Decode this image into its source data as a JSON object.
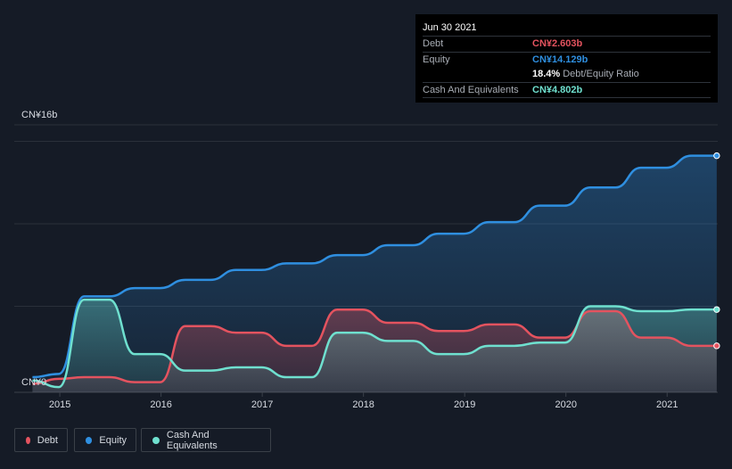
{
  "tooltip": {
    "date": "Jun 30 2021",
    "debt_label": "Debt",
    "debt_value": "CN¥2.603b",
    "equity_label": "Equity",
    "equity_value": "CN¥14.129b",
    "ratio_value": "18.4%",
    "ratio_label": "Debt/Equity Ratio",
    "cash_label": "Cash And Equivalents",
    "cash_value": "CN¥4.802b"
  },
  "colors": {
    "debt": "#e4535f",
    "equity": "#2f8fe0",
    "cash": "#6fe0cf",
    "background": "#151b26"
  },
  "legend": {
    "debt": "Debt",
    "equity": "Equity",
    "cash": "Cash And Equivalents"
  },
  "chart_data": {
    "type": "area",
    "title": "",
    "xlabel": "",
    "ylabel": "",
    "y_top_label": "CN¥16b",
    "y_bottom_label": "CN¥0",
    "ylim": [
      0,
      16
    ],
    "x_tick_labels": [
      "2015",
      "2016",
      "2017",
      "2018",
      "2019",
      "2020",
      "2021"
    ],
    "x_tick_values": [
      2015,
      2016,
      2017,
      2018,
      2019,
      2020,
      2021
    ],
    "xlim": [
      2014.55,
      2021.5
    ],
    "grid": true,
    "legend_position": "bottom-left",
    "series": [
      {
        "name": "Equity",
        "x": [
          2014.73,
          2014.99,
          2015.24,
          2015.49,
          2015.74,
          2015.99,
          2016.24,
          2016.49,
          2016.74,
          2016.99,
          2017.24,
          2017.49,
          2017.74,
          2017.99,
          2018.24,
          2018.49,
          2018.74,
          2018.99,
          2019.24,
          2019.49,
          2019.74,
          2019.99,
          2020.24,
          2020.49,
          2020.74,
          2020.99,
          2021.24,
          2021.49
        ],
        "values": [
          0.7,
          0.9,
          5.6,
          5.6,
          6.1,
          6.1,
          6.6,
          6.6,
          7.2,
          7.2,
          7.6,
          7.6,
          8.1,
          8.1,
          8.7,
          8.7,
          9.4,
          9.4,
          10.1,
          10.1,
          11.1,
          11.1,
          12.2,
          12.2,
          13.4,
          13.4,
          14.129,
          14.129
        ]
      },
      {
        "name": "Debt",
        "x": [
          2014.73,
          2014.99,
          2015.24,
          2015.49,
          2015.74,
          2015.99,
          2016.24,
          2016.49,
          2016.74,
          2016.99,
          2017.24,
          2017.49,
          2017.74,
          2017.99,
          2018.24,
          2018.49,
          2018.74,
          2018.99,
          2019.24,
          2019.49,
          2019.74,
          2019.99,
          2020.24,
          2020.49,
          2020.74,
          2020.99,
          2021.24,
          2021.49
        ],
        "values": [
          0.3,
          0.6,
          0.7,
          0.7,
          0.4,
          0.4,
          3.8,
          3.8,
          3.4,
          3.4,
          2.6,
          2.6,
          4.8,
          4.8,
          4.0,
          4.0,
          3.5,
          3.5,
          3.9,
          3.9,
          3.1,
          3.1,
          4.7,
          4.7,
          3.1,
          3.1,
          2.603,
          2.603
        ]
      },
      {
        "name": "Cash And Equivalents",
        "x": [
          2014.73,
          2014.99,
          2015.24,
          2015.49,
          2015.74,
          2015.99,
          2016.24,
          2016.49,
          2016.74,
          2016.99,
          2017.24,
          2017.49,
          2017.74,
          2017.99,
          2018.24,
          2018.49,
          2018.74,
          2018.99,
          2019.24,
          2019.49,
          2019.74,
          2019.99,
          2020.24,
          2020.49,
          2020.74,
          2020.99,
          2021.24,
          2021.49
        ],
        "values": [
          0.5,
          0.1,
          5.4,
          5.4,
          2.1,
          2.1,
          1.1,
          1.1,
          1.3,
          1.3,
          0.7,
          0.7,
          3.4,
          3.4,
          2.9,
          2.9,
          2.1,
          2.1,
          2.6,
          2.6,
          2.8,
          2.8,
          5.0,
          5.0,
          4.7,
          4.7,
          4.802,
          4.802
        ]
      }
    ]
  }
}
